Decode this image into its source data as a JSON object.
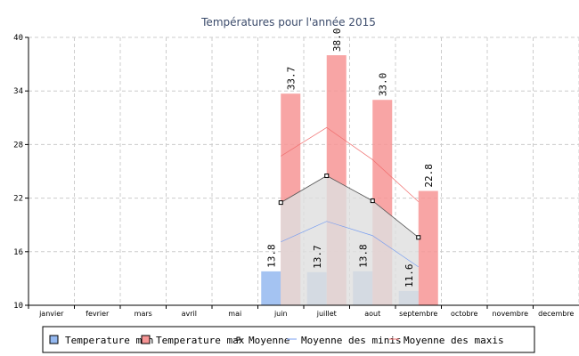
{
  "chart_data": {
    "type": "bar",
    "title": "Températures pour l'année 2015",
    "categories": [
      "janvier",
      "fevrier",
      "mars",
      "avril",
      "mai",
      "juin",
      "juillet",
      "aout",
      "septembre",
      "octobre",
      "novembre",
      "decembre"
    ],
    "ylim": [
      10,
      40
    ],
    "yticks": [
      "10",
      "16",
      "22",
      "28",
      "34",
      "40"
    ],
    "grid": true,
    "legend_placement": "bottom",
    "series": [
      {
        "name": "Temperature min",
        "type": "bar",
        "color": "#94b8f0",
        "values": [
          null,
          null,
          null,
          null,
          null,
          13.8,
          13.7,
          13.8,
          11.6,
          null,
          null,
          null
        ],
        "labels": [
          "",
          "",
          "",
          "",
          "",
          "13.8",
          "13.7",
          "13.8",
          "11.6",
          "",
          "",
          ""
        ]
      },
      {
        "name": "Temperature max",
        "type": "bar",
        "color": "#f79595",
        "values": [
          null,
          null,
          null,
          null,
          null,
          33.7,
          38.0,
          33.0,
          22.8,
          null,
          null,
          null
        ],
        "labels": [
          "",
          "",
          "",
          "",
          "",
          "33.7",
          "38.0",
          "33.0",
          "22.8",
          "",
          "",
          ""
        ]
      },
      {
        "name": "Moyenne",
        "type": "area",
        "color": "#555555",
        "values": [
          null,
          null,
          null,
          null,
          null,
          21.5,
          24.5,
          21.7,
          17.6,
          null,
          null,
          null
        ]
      },
      {
        "name": "Moyenne des minis",
        "type": "line",
        "color": "#7a9ff0",
        "values": [
          null,
          null,
          null,
          null,
          null,
          17.1,
          19.4,
          17.8,
          14.3,
          null,
          null,
          null
        ]
      },
      {
        "name": "Moyenne des maxis",
        "type": "line",
        "color": "#f07070",
        "values": [
          null,
          null,
          null,
          null,
          null,
          26.7,
          29.9,
          26.3,
          21.6,
          null,
          null,
          null
        ]
      }
    ]
  }
}
